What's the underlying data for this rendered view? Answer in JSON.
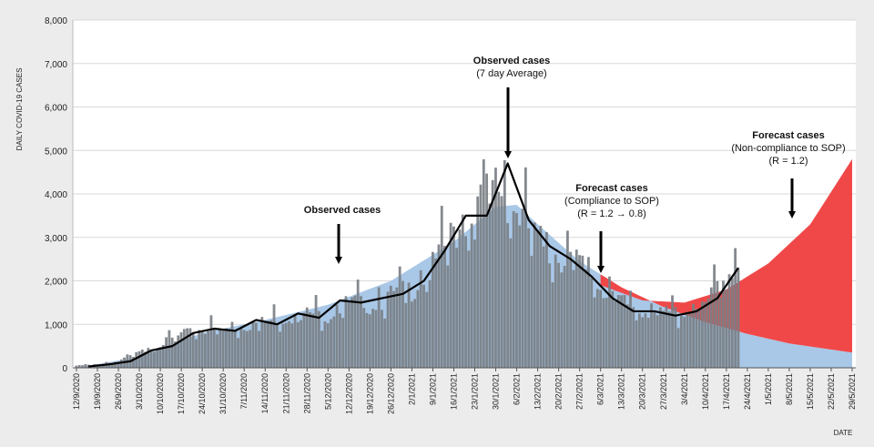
{
  "chart_data": {
    "type": "area",
    "ylabel": "DAILY COVID-19 CASES",
    "xlabel": "DATE",
    "ylim": [
      0,
      8000
    ],
    "y_ticks": [
      "0",
      "1,000",
      "2,000",
      "3,000",
      "4,000",
      "5,000",
      "6,000",
      "7,000",
      "8,000"
    ],
    "x_ticks": [
      "12/9/2020",
      "19/9/2020",
      "26/9/2020",
      "3/10/2020",
      "10/10/2020",
      "17/10/2020",
      "24/10/2020",
      "31/10/2020",
      "7/11/2020",
      "14/11/2020",
      "21/11/2020",
      "28/11/2020",
      "5/12/2020",
      "12/12/2020",
      "19/12/2020",
      "26/12/2020",
      "2/1/2021",
      "9/1/2021",
      "16/1/2021",
      "23/1/2021",
      "30/1/2021",
      "6/2/2021",
      "13/2/2021",
      "20/2/2021",
      "27/2/2021",
      "6/3/2021",
      "13/3/2021",
      "20/3/2021",
      "27/3/2021",
      "3/4/2021",
      "10/4/2021",
      "17/4/2021",
      "24/4/2021",
      "1/5/2021",
      "8/5/2021",
      "15/5/2021",
      "22/5/2021",
      "29/5/2021"
    ],
    "grid": true,
    "series": [
      {
        "kind": "bars",
        "color": "#7a7f86",
        "points": [
          [
            "12/9/2020",
            50
          ],
          [
            "19/9/2020",
            80
          ],
          [
            "26/9/2020",
            150
          ],
          [
            "3/10/2020",
            350
          ],
          [
            "10/10/2020",
            550
          ],
          [
            "17/10/2020",
            750
          ],
          [
            "24/10/2020",
            900
          ],
          [
            "31/10/2020",
            850
          ],
          [
            "7/11/2020",
            950
          ],
          [
            "14/11/2020",
            1050
          ],
          [
            "21/11/2020",
            1150
          ],
          [
            "28/11/2020",
            1250
          ],
          [
            "5/12/2020",
            1200
          ],
          [
            "12/12/2020",
            1500
          ],
          [
            "19/12/2020",
            1450
          ],
          [
            "26/12/2020",
            1650
          ],
          [
            "2/1/2021",
            1800
          ],
          [
            "9/1/2021",
            2300
          ],
          [
            "16/1/2021",
            3100
          ],
          [
            "23/1/2021",
            3500
          ],
          [
            "30/1/2021",
            4300
          ],
          [
            "6/2/2021",
            3600
          ],
          [
            "13/2/2021",
            2900
          ],
          [
            "20/2/2021",
            2600
          ],
          [
            "27/2/2021",
            2400
          ],
          [
            "6/3/2021",
            1900
          ],
          [
            "13/3/2021",
            1500
          ],
          [
            "20/3/2021",
            1350
          ],
          [
            "27/3/2021",
            1250
          ],
          [
            "3/4/2021",
            1300
          ],
          [
            "10/4/2021",
            1450
          ],
          [
            "17/4/2021",
            2100
          ],
          [
            "21/4/2021",
            2500
          ]
        ]
      },
      {
        "kind": "line",
        "label": "Observed cases (7 day Average)",
        "color": "#000000",
        "points": [
          [
            "16/9/2020",
            30
          ],
          [
            "23/9/2020",
            80
          ],
          [
            "30/9/2020",
            150
          ],
          [
            "7/10/2020",
            400
          ],
          [
            "14/10/2020",
            500
          ],
          [
            "21/10/2020",
            800
          ],
          [
            "28/10/2020",
            900
          ],
          [
            "4/11/2020",
            850
          ],
          [
            "11/11/2020",
            1100
          ],
          [
            "18/11/2020",
            1000
          ],
          [
            "25/11/2020",
            1250
          ],
          [
            "2/12/2020",
            1150
          ],
          [
            "9/12/2020",
            1550
          ],
          [
            "16/12/2020",
            1500
          ],
          [
            "23/12/2020",
            1600
          ],
          [
            "30/12/2020",
            1700
          ],
          [
            "6/1/2021",
            2000
          ],
          [
            "13/1/2021",
            2700
          ],
          [
            "20/1/2021",
            3500
          ],
          [
            "27/1/2021",
            3500
          ],
          [
            "3/2/2021",
            4700
          ],
          [
            "10/2/2021",
            3400
          ],
          [
            "17/2/2021",
            2800
          ],
          [
            "24/2/2021",
            2500
          ],
          [
            "3/3/2021",
            2100
          ],
          [
            "10/3/2021",
            1600
          ],
          [
            "17/3/2021",
            1300
          ],
          [
            "24/3/2021",
            1300
          ],
          [
            "31/3/2021",
            1200
          ],
          [
            "7/4/2021",
            1300
          ],
          [
            "14/4/2021",
            1600
          ],
          [
            "21/4/2021",
            2300
          ]
        ]
      },
      {
        "kind": "area",
        "label": "Forecast cases (Compliance to SOP) (R = 1.2 → 0.8)",
        "color": "#a9c7e6",
        "points": [
          [
            "12/9/2020",
            0
          ],
          [
            "3/10/2020",
            250
          ],
          [
            "24/10/2020",
            800
          ],
          [
            "14/11/2020",
            1100
          ],
          [
            "5/12/2020",
            1450
          ],
          [
            "26/12/2020",
            2000
          ],
          [
            "16/1/2021",
            2900
          ],
          [
            "30/1/2021",
            3700
          ],
          [
            "6/2/2021",
            3750
          ],
          [
            "13/2/2021",
            3300
          ],
          [
            "27/2/2021",
            2450
          ],
          [
            "13/3/2021",
            1850
          ],
          [
            "27/3/2021",
            1400
          ],
          [
            "10/4/2021",
            1050
          ],
          [
            "24/4/2021",
            780
          ],
          [
            "8/5/2021",
            560
          ],
          [
            "22/5/2021",
            420
          ],
          [
            "29/5/2021",
            350
          ]
        ]
      },
      {
        "kind": "area",
        "label": "Forecast cases (Non-compliance to SOP) (R = 1.2)",
        "color": "#f04848",
        "points": [
          [
            "6/3/2021",
            1900
          ],
          [
            "20/3/2021",
            1550
          ],
          [
            "3/4/2021",
            1500
          ],
          [
            "17/4/2021",
            1800
          ],
          [
            "1/5/2021",
            2400
          ],
          [
            "15/5/2021",
            3300
          ],
          [
            "29/5/2021",
            4800
          ]
        ]
      }
    ],
    "annotations": [
      {
        "title": "Observed cases",
        "lines": []
      },
      {
        "title": "Observed cases",
        "lines": [
          "(7 day Average)"
        ]
      },
      {
        "title": "Forecast cases",
        "lines": [
          "(Compliance to SOP)",
          "(R = 1.2 → 0.8)"
        ]
      },
      {
        "title": "Forecast cases",
        "lines": [
          "(Non-compliance to SOP)",
          "(R =  1.2)"
        ]
      }
    ]
  }
}
